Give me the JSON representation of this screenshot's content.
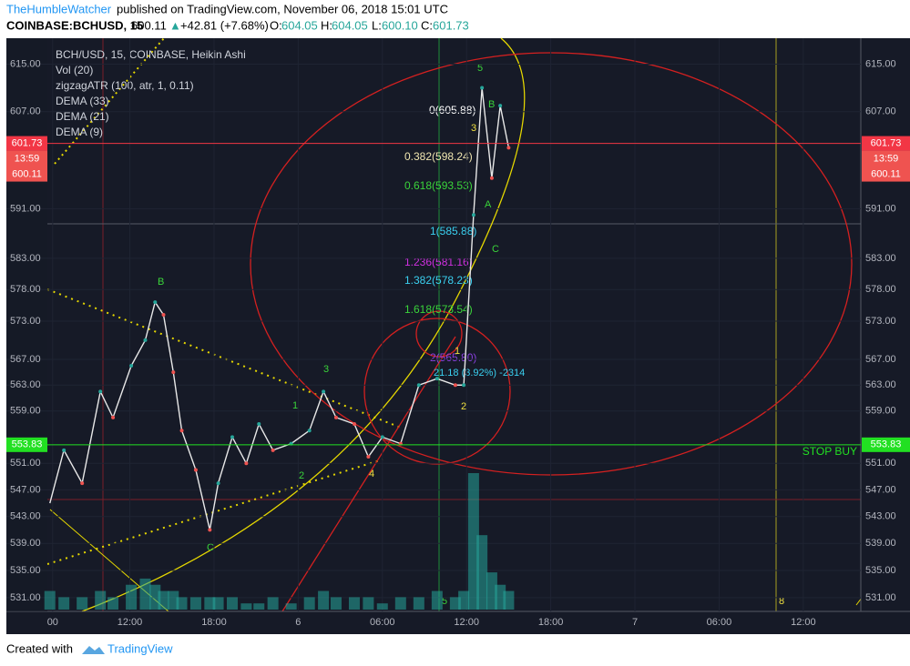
{
  "header": {
    "author": "TheHumbleWatcher",
    "published": "published on TradingView.com, November 06, 2018 15:01 UTC"
  },
  "symbol": {
    "name": "COINBASE:BCHUSD, 15",
    "last": 600.11,
    "arrow": "▲",
    "change": "+42.81 (+7.68%)",
    "o_label": "O:",
    "open": 604.05,
    "h_label": "H:",
    "high": 604.05,
    "l_label": "L:",
    "low": 600.1,
    "low_label": "600.10",
    "c_label": "C:",
    "close": 601.73
  },
  "footer": {
    "created": "Created with",
    "brand": "TradingView"
  },
  "countdown": "13:59",
  "fib_labels": [
    "0(605.88)",
    "0.382(598.24)",
    "0.618(593.53)",
    "1(585.88)",
    "1.236(581.16)",
    "1.382(578.23)",
    "1.618(573.54)",
    "2(565.80)"
  ],
  "measure": "21.18 (3.92%) -2314",
  "waves": [
    "B",
    "C",
    "1",
    "2",
    "3",
    "4",
    "5",
    "1",
    "2",
    "3",
    "A",
    "B",
    "C",
    "5",
    "8"
  ],
  "chart_data": {
    "type": "line",
    "title": "BCH/USD, 15, COINBASE, Heikin Ashi",
    "indicators": [
      "Vol (20)",
      "zigzagATR (100, atr, 1, 0.11)",
      "DEMA (33)",
      "DEMA (21)",
      "DEMA (9)"
    ],
    "x": [
      6.3,
      7.3,
      8.6,
      9.9,
      10.8,
      12.1,
      13.1,
      13.8,
      14.4,
      15.1,
      15.7,
      16.7,
      17.7,
      18.3,
      19.3,
      20.3,
      21.2,
      22.2,
      23.5,
      24.8,
      25.8,
      26.7,
      28.0,
      29.0,
      30.0,
      31.3,
      32.6,
      33.9,
      35.2,
      35.8,
      36.5,
      37.1,
      37.8,
      38.4,
      39.0
    ],
    "values": [
      545,
      553,
      548,
      562,
      558,
      566,
      570,
      576,
      574,
      565,
      556,
      550,
      541,
      548,
      555,
      551,
      557,
      553,
      554,
      556,
      562,
      558,
      557,
      552,
      555,
      554,
      563,
      564,
      563,
      563,
      590,
      611,
      596,
      608,
      601
    ],
    "color": "#e8e8e8",
    "volume": [
      3,
      2,
      2,
      3,
      2,
      4,
      5,
      4,
      3,
      3,
      2,
      2,
      2,
      2,
      2,
      1,
      1,
      2,
      1,
      2,
      3,
      2,
      2,
      2,
      1,
      2,
      2,
      3,
      2,
      3,
      22,
      12,
      6,
      4,
      3
    ],
    "volume_color": "#26a69a",
    "log_scale": true,
    "ylim": [
      529,
      619.4
    ],
    "yticks": [
      {
        "value": 531,
        "label": "531.00"
      },
      {
        "value": 535,
        "label": "535.00"
      },
      {
        "value": 539,
        "label": "539.00"
      },
      {
        "value": 543,
        "label": "543.00"
      },
      {
        "value": 547,
        "label": "547.00"
      },
      {
        "value": 551,
        "label": "551.00"
      },
      {
        "value": 559,
        "label": "559.00"
      },
      {
        "value": 563,
        "label": "563.00"
      },
      {
        "value": 567,
        "label": "567.00"
      },
      {
        "value": 573,
        "label": "573.00"
      },
      {
        "value": 578,
        "label": "578.00"
      },
      {
        "value": 583,
        "label": "583.00"
      },
      {
        "value": 591,
        "label": "591.00"
      },
      {
        "value": 607,
        "label": "607.00"
      },
      {
        "value": 615,
        "label": "615.00"
      }
    ],
    "xlim": [
      3.2,
      64.1
    ],
    "xticks": [
      {
        "value": 6.5,
        "label": "00"
      },
      {
        "value": 12,
        "label": "12:00"
      },
      {
        "value": 18,
        "label": "18:00"
      },
      {
        "value": 24,
        "label": "6"
      },
      {
        "value": 30,
        "label": "06:00"
      },
      {
        "value": 36,
        "label": "12:00"
      },
      {
        "value": 42,
        "label": "18:00"
      },
      {
        "value": 48,
        "label": "7"
      },
      {
        "value": 54,
        "label": "06:00"
      },
      {
        "value": 60,
        "label": "12:00"
      }
    ],
    "price_lines": [
      {
        "value": 601.73,
        "color": "#f23645"
      },
      {
        "value": 553.83,
        "label": "STOP BUY",
        "color": "#22e022"
      }
    ]
  }
}
